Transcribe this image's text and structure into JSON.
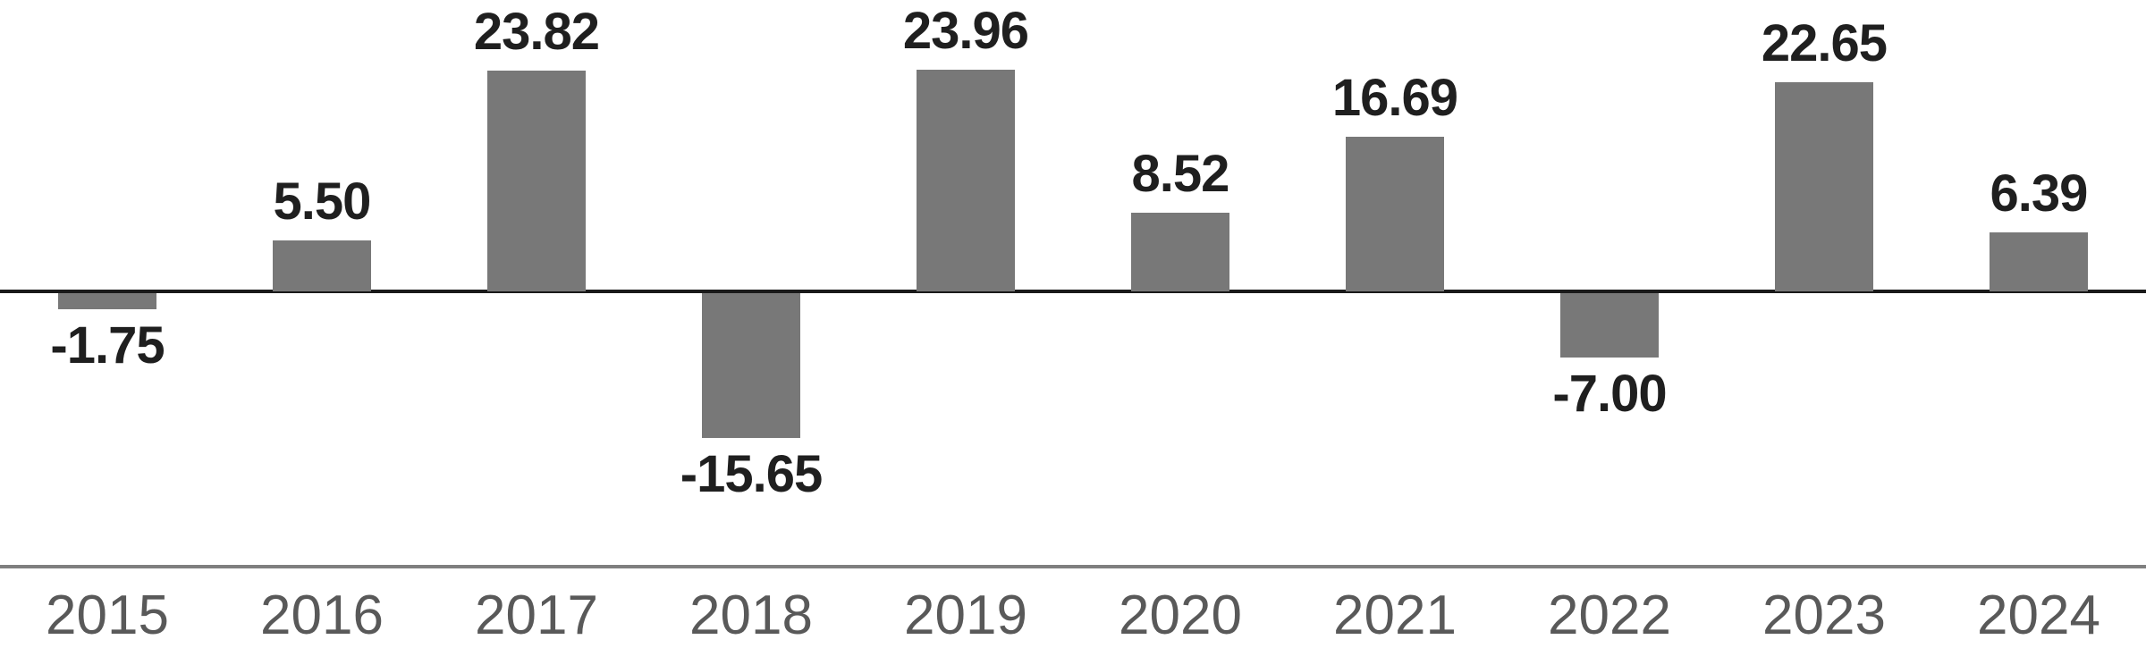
{
  "chart_data": {
    "type": "bar",
    "title": "",
    "xlabel": "",
    "ylabel": "",
    "categories": [
      "2015",
      "2016",
      "2017",
      "2018",
      "2019",
      "2020",
      "2021",
      "2022",
      "2023",
      "2024"
    ],
    "values": [
      -1.75,
      5.5,
      23.82,
      -15.65,
      23.96,
      8.52,
      16.69,
      -7.0,
      22.65,
      6.39
    ],
    "value_labels": [
      "-1.75",
      "5.50",
      "23.82",
      "-15.65",
      "23.96",
      "8.52",
      "16.69",
      "-7.00",
      "22.65",
      "6.39"
    ],
    "ylim": [
      -16.5,
      25
    ],
    "grid": false,
    "legend": false,
    "data_labels": true,
    "zero_axis_line": true,
    "category_axis_line": true
  },
  "colors": {
    "bar": "#787878",
    "value_label": "#1f1f1f",
    "category_label": "#595959",
    "zero_line": "#1a1a1a",
    "baseline": "#7f7f7f"
  }
}
